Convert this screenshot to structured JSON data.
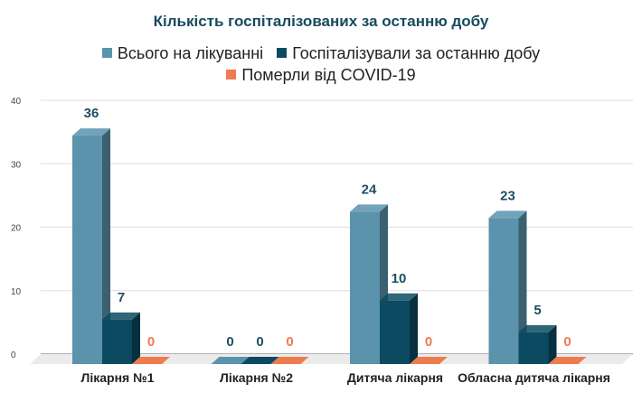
{
  "chart_data": {
    "type": "bar",
    "title": "Кількість госпіталізованих за останню добу",
    "categories": [
      "Лікарня №1",
      "Лікарня №2",
      "Дитяча лікарня",
      "Обласна дитяча лікарня"
    ],
    "series": [
      {
        "name": "Всього на лікуванні",
        "values": [
          36,
          0,
          24,
          23
        ],
        "color": "#5b93ad"
      },
      {
        "name": "Госпіталізували за останню добу",
        "values": [
          7,
          0,
          10,
          5
        ],
        "color": "#0b4a60"
      },
      {
        "name": "Померли від COVID-19",
        "values": [
          0,
          0,
          0,
          0
        ],
        "color": "#f07b4f"
      }
    ],
    "ylim": [
      0,
      40
    ],
    "yticks": [
      "0",
      "10",
      "20",
      "30",
      "40"
    ],
    "grid": true,
    "legend_position": "top",
    "style": "3d",
    "data_labels": true
  }
}
